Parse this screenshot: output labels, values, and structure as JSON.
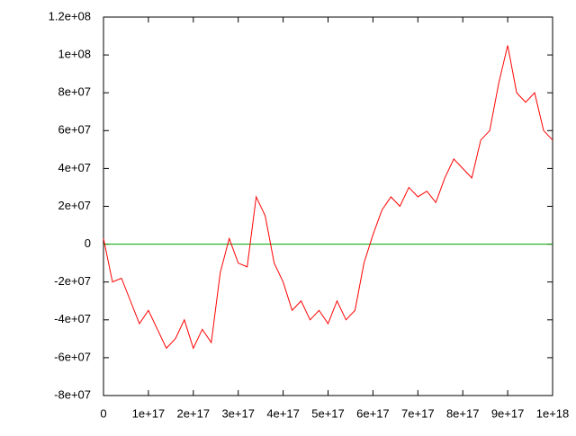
{
  "chart_data": {
    "type": "line",
    "xlim": [
      0,
      1e+18
    ],
    "ylim": [
      -80000000,
      120000000
    ],
    "xticks": [
      0,
      {
        "value": 1e+17,
        "label": "1e+17"
      },
      {
        "value": 2e+17,
        "label": "2e+17"
      },
      {
        "value": 3e+17,
        "label": "3e+17"
      },
      {
        "value": 4e+17,
        "label": "4e+17"
      },
      {
        "value": 5e+17,
        "label": "5e+17"
      },
      {
        "value": 6e+17,
        "label": "6e+17"
      },
      {
        "value": 7e+17,
        "label": "7e+17"
      },
      {
        "value": 8e+17,
        "label": "8e+17"
      },
      {
        "value": 9e+17,
        "label": "9e+17"
      },
      {
        "value": 1e+18,
        "label": "1e+18"
      }
    ],
    "yticks": [
      {
        "value": -80000000,
        "label": "-8e+07"
      },
      {
        "value": -60000000,
        "label": "-6e+07"
      },
      {
        "value": -40000000,
        "label": "-4e+07"
      },
      {
        "value": -20000000,
        "label": "-2e+07"
      },
      0,
      {
        "value": 20000000,
        "label": "2e+07"
      },
      {
        "value": 40000000,
        "label": "4e+07"
      },
      {
        "value": 60000000,
        "label": "6e+07"
      },
      {
        "value": 80000000,
        "label": "8e+07"
      },
      {
        "value": 100000000,
        "label": "1e+08"
      },
      {
        "value": 120000000,
        "label": "1.2e+08"
      }
    ],
    "series": [
      {
        "color": "#ff0000",
        "x": [
          0,
          2e+16,
          4e+16,
          6e+16,
          8e+16,
          1e+17,
          1.2e+17,
          1.4e+17,
          1.6e+17,
          1.8e+17,
          2e+17,
          2.2e+17,
          2.4e+17,
          2.6e+17,
          2.8e+17,
          3e+17,
          3.2e+17,
          3.4e+17,
          3.6e+17,
          3.8e+17,
          4e+17,
          4.2e+17,
          4.4e+17,
          4.6e+17,
          4.8e+17,
          5e+17,
          5.2e+17,
          5.4e+17,
          5.6e+17,
          5.8e+17,
          6e+17,
          6.2e+17,
          6.4e+17,
          6.6e+17,
          6.8e+17,
          7e+17,
          7.2e+17,
          7.4e+17,
          7.6e+17,
          7.8e+17,
          8e+17,
          8.2e+17,
          8.4e+17,
          8.6e+17,
          8.8e+17,
          9e+17,
          9.2e+17,
          9.4e+17,
          9.6e+17,
          9.8e+17,
          1e+18
        ],
        "values": [
          3000000,
          -20000000,
          -18000000,
          -30000000,
          -42000000,
          -35000000,
          -45000000,
          -55000000,
          -50000000,
          -40000000,
          -55000000,
          -45000000,
          -52000000,
          -15000000,
          3000000,
          -10000000,
          -12000000,
          25000000,
          15000000,
          -10000000,
          -20000000,
          -35000000,
          -30000000,
          -40000000,
          -35000000,
          -42000000,
          -30000000,
          -40000000,
          -35000000,
          -10000000,
          5000000,
          18000000,
          25000000,
          20000000,
          30000000,
          25000000,
          28000000,
          22000000,
          35000000,
          45000000,
          40000000,
          35000000,
          55000000,
          60000000,
          85000000,
          105000000,
          80000000,
          75000000,
          80000000,
          60000000,
          55000000
        ]
      },
      {
        "color": "#00a000",
        "x": [
          0,
          1e+18
        ],
        "values": [
          0,
          0
        ]
      }
    ]
  }
}
